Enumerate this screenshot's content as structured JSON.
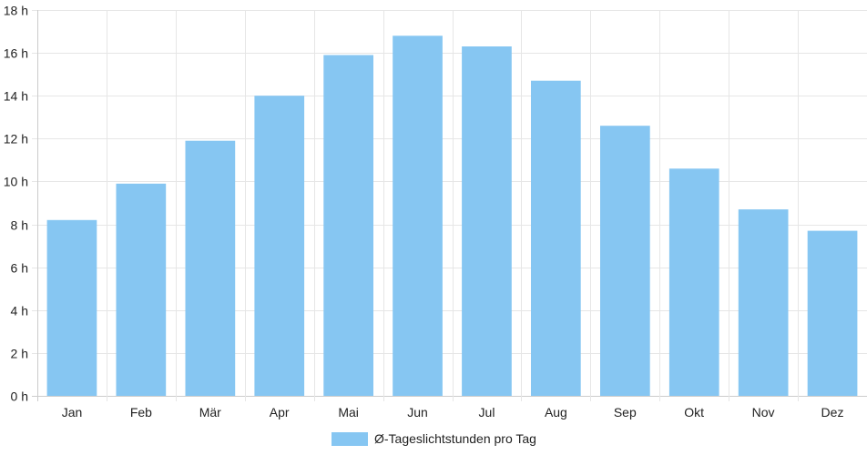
{
  "chart_data": {
    "type": "bar",
    "categories": [
      "Jan",
      "Feb",
      "Mär",
      "Apr",
      "Mai",
      "Jun",
      "Jul",
      "Aug",
      "Sep",
      "Okt",
      "Nov",
      "Dez"
    ],
    "series": [
      {
        "name": "Ø-Tageslichtstunden pro Tag",
        "values": [
          8.2,
          9.9,
          11.9,
          14.0,
          15.9,
          16.8,
          16.3,
          14.7,
          12.6,
          10.6,
          8.7,
          7.7
        ],
        "color": "#86c6f2"
      }
    ],
    "ylim": [
      0,
      18
    ],
    "yticks": [
      0,
      2,
      4,
      6,
      8,
      10,
      12,
      14,
      16,
      18
    ],
    "ytick_suffix": " h",
    "grid": true,
    "legend_position": "bottom"
  }
}
